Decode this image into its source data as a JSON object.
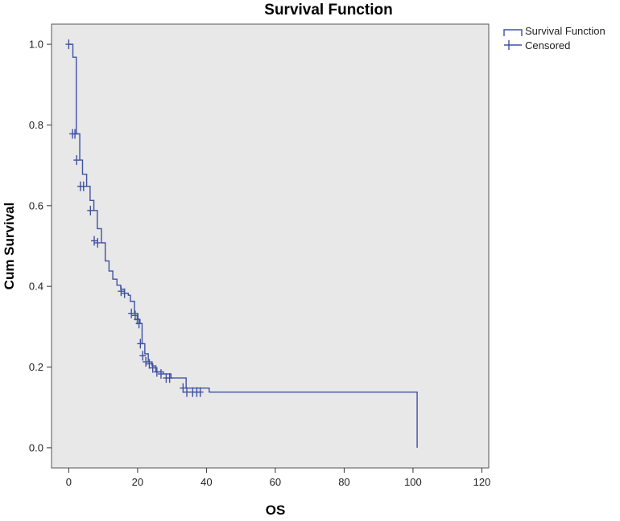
{
  "chart_data": {
    "type": "line",
    "title": "Survival Function",
    "xlabel": "OS",
    "ylabel": "Cum Survival",
    "xlim": [
      -5,
      122
    ],
    "ylim": [
      -0.05,
      1.05
    ],
    "xticks": [
      0,
      20,
      40,
      60,
      80,
      100,
      120
    ],
    "yticks": [
      0.0,
      0.2,
      0.4,
      0.6,
      0.8,
      1.0
    ],
    "xtick_labels": [
      "0",
      "20",
      "40",
      "60",
      "80",
      "100",
      "120"
    ],
    "ytick_labels": [
      "0.0",
      "0.2",
      "0.4",
      "0.6",
      "0.8",
      "1.0"
    ],
    "grid": false,
    "legend_position": "right-top",
    "colors": {
      "line": "#3f51a3",
      "plot_bg": "#e8e8e8",
      "frame": "#555555"
    },
    "legend": [
      {
        "label": "Survival Function",
        "marker": "step"
      },
      {
        "label": "Censored",
        "marker": "plus"
      }
    ],
    "series": [
      {
        "name": "Survival Function",
        "step": true,
        "x": [
          0,
          1.2,
          2.2,
          3.2,
          4.0,
          5.2,
          6.2,
          7.3,
          8.3,
          9.5,
          10.6,
          11.7,
          12.8,
          14.0,
          15.1,
          16.2,
          17.3,
          17.9,
          19.1,
          20.1,
          20.7,
          21.3,
          22.1,
          23.1,
          24.2,
          25.3,
          27.5,
          29.7,
          33.0,
          34.1,
          40.8,
          101.2
        ],
        "y": [
          1.0,
          0.968,
          0.778,
          0.713,
          0.678,
          0.648,
          0.613,
          0.588,
          0.543,
          0.508,
          0.463,
          0.438,
          0.418,
          0.403,
          0.393,
          0.383,
          0.378,
          0.363,
          0.333,
          0.318,
          0.308,
          0.258,
          0.233,
          0.213,
          0.203,
          0.188,
          0.183,
          0.173,
          0.173,
          0.148,
          0.138,
          0.048
        ]
      }
    ],
    "censored": {
      "name": "Censored",
      "x": [
        0,
        1.1,
        1.8,
        2.3,
        3.4,
        4.3,
        6.3,
        7.4,
        8.4,
        15.2,
        16.2,
        18.2,
        19.3,
        19.9,
        20.4,
        20.8,
        21.5,
        22.4,
        23.4,
        24.4,
        25.6,
        26.8,
        28.3,
        29.3,
        33.2,
        34.3,
        36.0,
        37.2,
        38.2
      ],
      "y": [
        1.0,
        0.778,
        0.778,
        0.713,
        0.648,
        0.648,
        0.588,
        0.513,
        0.508,
        0.388,
        0.383,
        0.333,
        0.328,
        0.318,
        0.308,
        0.258,
        0.228,
        0.213,
        0.208,
        0.198,
        0.188,
        0.183,
        0.173,
        0.173,
        0.148,
        0.138,
        0.138,
        0.138,
        0.138
      ]
    }
  }
}
